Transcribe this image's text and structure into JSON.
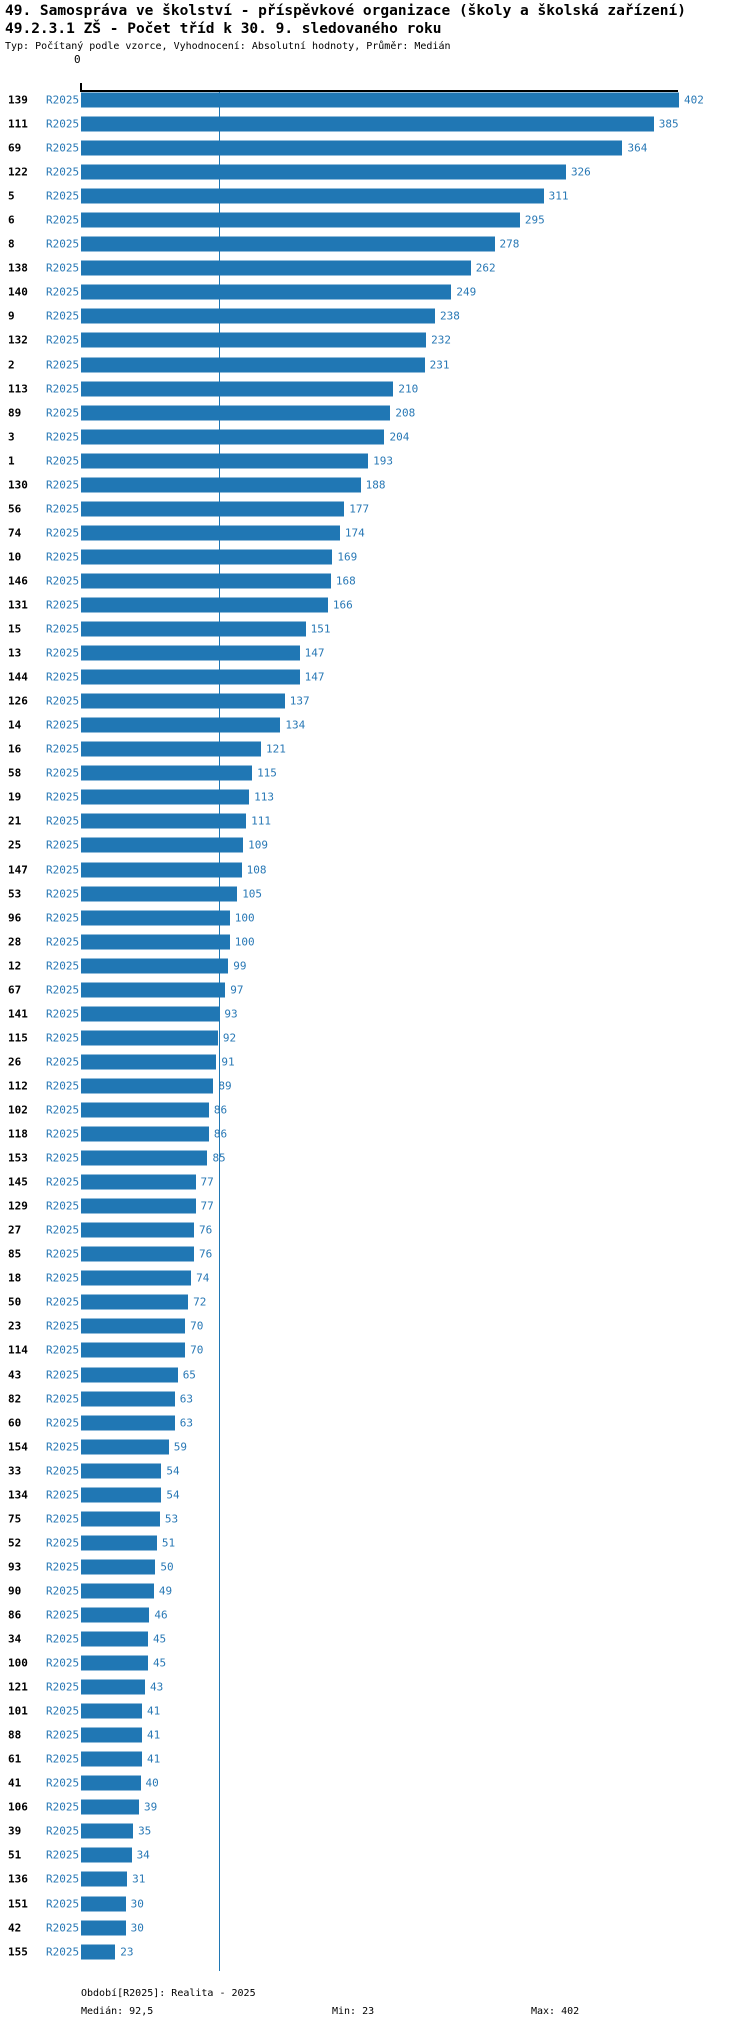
{
  "header": {
    "title_line1": "49. Samospráva ve školství - příspěvkové organizace (školy a školská zařízení)",
    "title_line2": "49.2.3.1 ZŠ - Počet tříd k 30. 9. sledovaného roku",
    "subtitle": "Typ: Počítaný podle vzorce, Vyhodnocení: Absolutní hodnoty, Průměr: Medián"
  },
  "axis": {
    "zero_label": "0"
  },
  "chart_data": {
    "type": "bar",
    "orientation": "horizontal",
    "series_label": "R2025",
    "categories": [
      "139",
      "111",
      "69",
      "122",
      "5",
      "6",
      "8",
      "138",
      "140",
      "9",
      "132",
      "2",
      "113",
      "89",
      "3",
      "1",
      "130",
      "56",
      "74",
      "10",
      "146",
      "131",
      "15",
      "13",
      "144",
      "126",
      "14",
      "16",
      "58",
      "19",
      "21",
      "25",
      "147",
      "53",
      "96",
      "28",
      "12",
      "67",
      "141",
      "115",
      "26",
      "112",
      "102",
      "118",
      "153",
      "145",
      "129",
      "27",
      "85",
      "18",
      "50",
      "23",
      "114",
      "43",
      "82",
      "60",
      "154",
      "33",
      "134",
      "75",
      "52",
      "93",
      "90",
      "86",
      "34",
      "100",
      "121",
      "101",
      "88",
      "61",
      "41",
      "106",
      "39",
      "51",
      "136",
      "151",
      "42",
      "155"
    ],
    "values": [
      402,
      385,
      364,
      326,
      311,
      295,
      278,
      262,
      249,
      238,
      232,
      231,
      210,
      208,
      204,
      193,
      188,
      177,
      174,
      169,
      168,
      166,
      151,
      147,
      147,
      137,
      134,
      121,
      115,
      113,
      111,
      109,
      108,
      105,
      100,
      100,
      99,
      97,
      93,
      92,
      91,
      89,
      86,
      86,
      85,
      77,
      77,
      76,
      76,
      74,
      72,
      70,
      70,
      65,
      63,
      63,
      59,
      54,
      54,
      53,
      51,
      50,
      49,
      46,
      45,
      45,
      43,
      41,
      41,
      41,
      40,
      39,
      35,
      34,
      31,
      30,
      30,
      23
    ],
    "xlim": [
      0,
      402
    ],
    "median_line_value": 92.5,
    "value_labels": true,
    "grid": false,
    "bar_color": "#2077b4",
    "label_color": "#2878b5",
    "median_line_color": "#2077b4"
  },
  "footer": {
    "period": "Období[R2025]: Realita - 2025",
    "median": "Medián: 92,5",
    "min": "Min: 23",
    "max": "Max: 402"
  }
}
